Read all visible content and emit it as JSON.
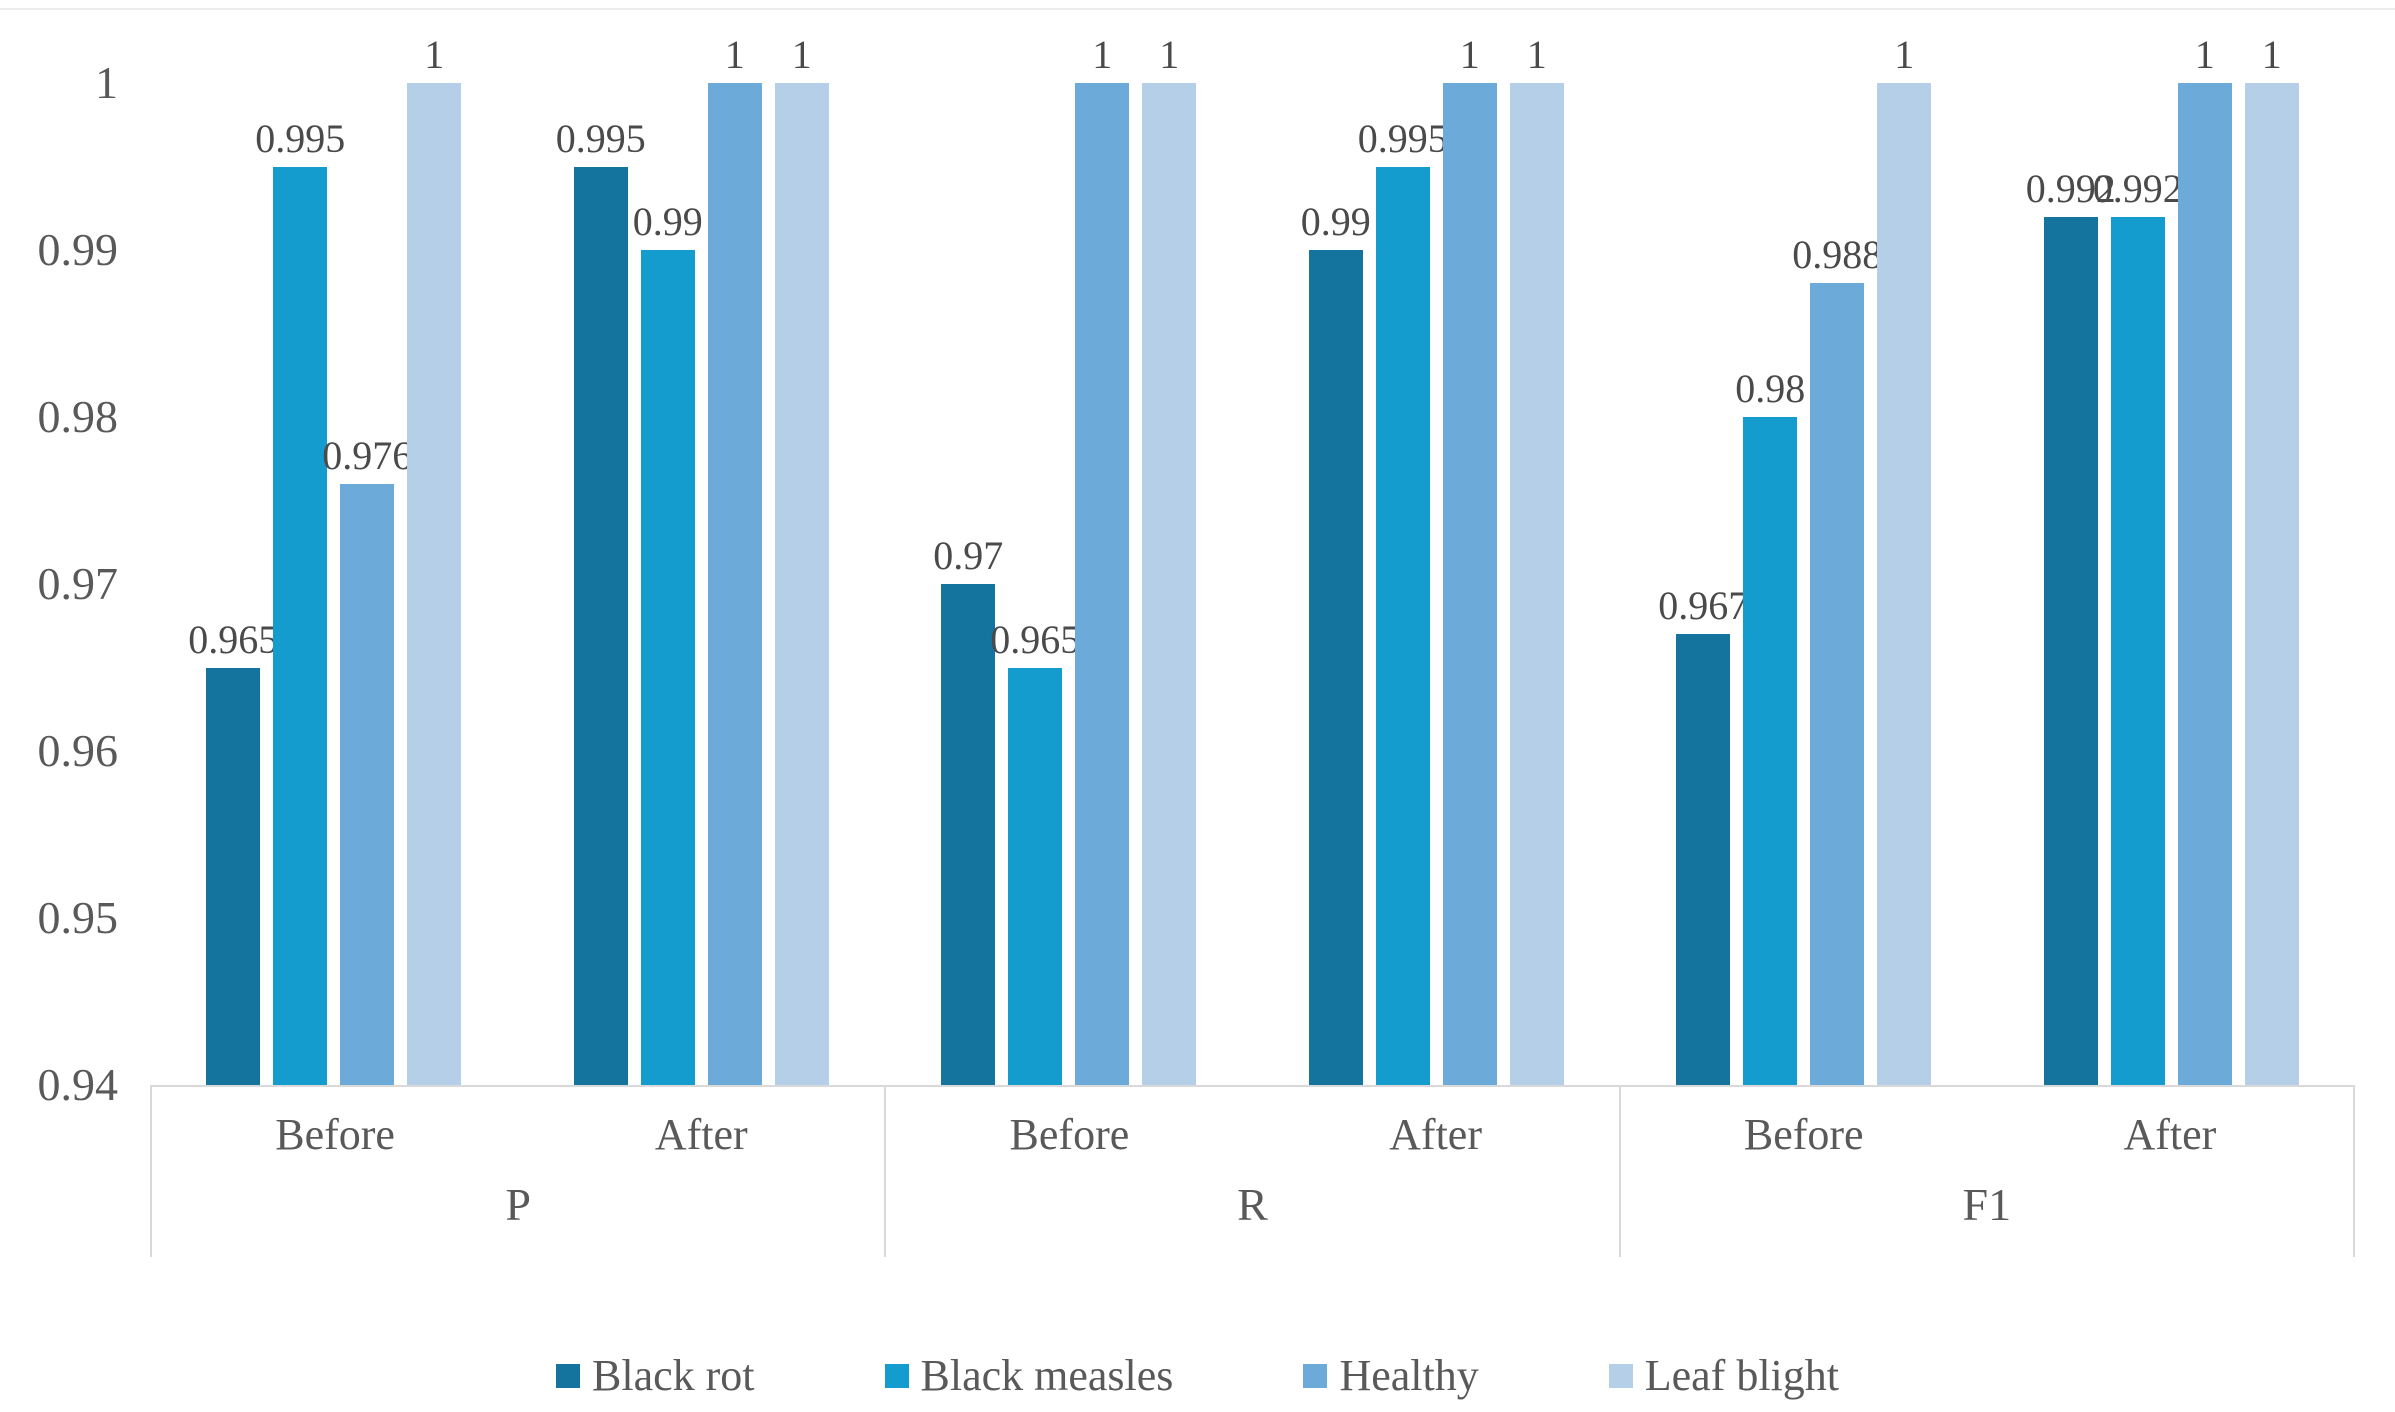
{
  "chart_data": {
    "type": "bar",
    "title": "",
    "xlabel": "",
    "ylabel": "",
    "grid": false,
    "legend_position": "bottom",
    "y_axis": {
      "min": 0.94,
      "max": 1,
      "ticks": [
        {
          "value": 1,
          "label": "1"
        },
        {
          "value": 0.99,
          "label": "0.99"
        },
        {
          "value": 0.98,
          "label": "0.98"
        },
        {
          "value": 0.97,
          "label": "0.97"
        },
        {
          "value": 0.96,
          "label": "0.96"
        },
        {
          "value": 0.95,
          "label": "0.95"
        },
        {
          "value": 0.94,
          "label": "0.94"
        }
      ]
    },
    "series": [
      {
        "name": "Black rot",
        "color": "#14749e"
      },
      {
        "name": "Black measles",
        "color": "#149ccf"
      },
      {
        "name": "Healthy",
        "color": "#6caad9"
      },
      {
        "name": "Leaf blight",
        "color": "#b6cfe9"
      }
    ],
    "groups": [
      {
        "label": "P",
        "subgroups": [
          {
            "label": "Before",
            "values": [
              0.965,
              0.995,
              0.976,
              1
            ],
            "value_labels": [
              "0.965",
              "0.995",
              "0.976",
              "1"
            ]
          },
          {
            "label": "After",
            "values": [
              0.995,
              0.99,
              1,
              1
            ],
            "value_labels": [
              "0.995",
              "0.99",
              "1",
              "1"
            ]
          }
        ]
      },
      {
        "label": "R",
        "subgroups": [
          {
            "label": "Before",
            "values": [
              0.97,
              0.965,
              1,
              1
            ],
            "value_labels": [
              "0.97",
              "0.965",
              "1",
              "1"
            ]
          },
          {
            "label": "After",
            "values": [
              0.99,
              0.995,
              1,
              1
            ],
            "value_labels": [
              "0.99",
              "0.995",
              "1",
              "1"
            ]
          }
        ]
      },
      {
        "label": "F1",
        "subgroups": [
          {
            "label": "Before",
            "values": [
              0.967,
              0.98,
              0.988,
              1
            ],
            "value_labels": [
              "0.967",
              "0.98",
              "0.988",
              "1"
            ]
          },
          {
            "label": "After",
            "values": [
              0.992,
              0.992,
              1,
              1
            ],
            "value_labels": [
              "0.992",
              "0.992",
              "1",
              "1"
            ]
          }
        ]
      }
    ]
  }
}
